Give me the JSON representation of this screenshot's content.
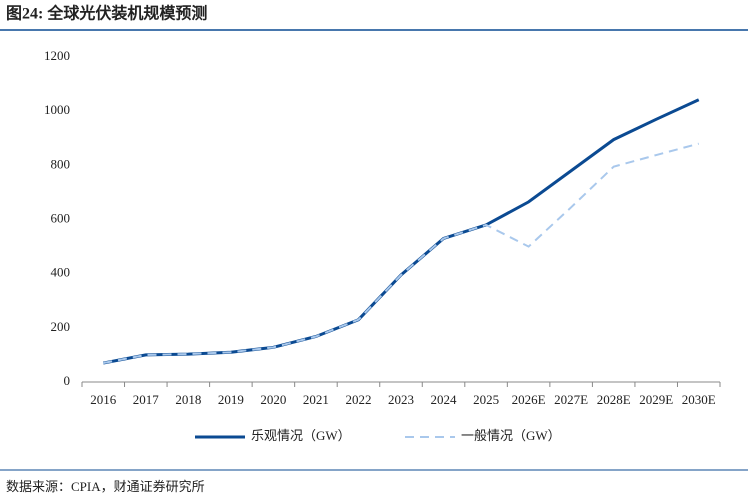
{
  "chart_data": {
    "type": "line",
    "title": "图24: 全球光伏装机规模预测",
    "source": "数据来源：CPIA，财通证券研究所",
    "categories": [
      "2016",
      "2017",
      "2018",
      "2019",
      "2020",
      "2021",
      "2022",
      "2023",
      "2024",
      "2025",
      "2026E",
      "2027E",
      "2028E",
      "2029E",
      "2030E"
    ],
    "series": [
      {
        "name": "乐观情况（GW）",
        "color": "#0b4a92",
        "dashed": false,
        "values": [
          70,
          100,
          103,
          110,
          128,
          168,
          230,
          395,
          530,
          580,
          665,
          780,
          895,
          970,
          1042
        ]
      },
      {
        "name": "一般情况（GW）",
        "color": "#a9c8ec",
        "dashed": true,
        "values": [
          70,
          100,
          103,
          110,
          128,
          168,
          230,
          395,
          530,
          580,
          500,
          645,
          795,
          838,
          880
        ]
      }
    ],
    "ylim": [
      0,
      1200
    ],
    "yticks": [
      0,
      200,
      400,
      600,
      800,
      1000,
      1200
    ],
    "grid": false
  }
}
